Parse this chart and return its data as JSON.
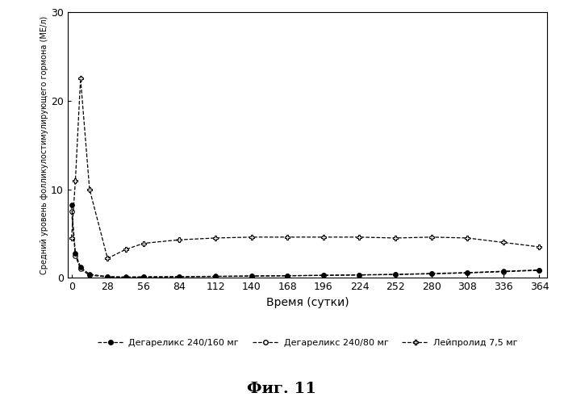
{
  "title": "Фиг. 11",
  "ylabel": "Средний уровень фолликулостимулирующего гормона (МЕ/л)",
  "xlabel": "Время (сутки)",
  "ylim": [
    0,
    30
  ],
  "xlim": [
    -3,
    370
  ],
  "xticks": [
    0,
    28,
    56,
    84,
    112,
    140,
    168,
    196,
    224,
    252,
    280,
    308,
    336,
    364
  ],
  "yticks": [
    0,
    10,
    20,
    30
  ],
  "series1_label": "Дегареликс 240/160 мг",
  "series2_label": "Дегареликс 240/80 мг",
  "series3_label": "Лейпролид 7,5 мг",
  "series1_x": [
    0,
    3,
    7,
    14,
    28,
    42,
    56,
    84,
    112,
    140,
    168,
    196,
    224,
    252,
    280,
    308,
    336,
    364
  ],
  "series1_y": [
    8.2,
    2.8,
    1.2,
    0.4,
    0.15,
    0.1,
    0.12,
    0.15,
    0.18,
    0.22,
    0.25,
    0.3,
    0.35,
    0.4,
    0.5,
    0.6,
    0.75,
    0.9
  ],
  "series2_x": [
    0,
    3,
    7,
    14,
    28,
    42,
    56,
    84,
    112,
    140,
    168,
    196,
    224,
    252,
    280,
    308,
    336,
    364
  ],
  "series2_y": [
    7.5,
    2.5,
    1.0,
    0.3,
    0.12,
    0.08,
    0.1,
    0.13,
    0.16,
    0.2,
    0.23,
    0.28,
    0.32,
    0.38,
    0.46,
    0.56,
    0.7,
    0.85
  ],
  "series3_x": [
    0,
    3,
    7,
    14,
    28,
    42,
    56,
    84,
    112,
    140,
    168,
    196,
    224,
    252,
    280,
    308,
    336,
    364
  ],
  "series3_y": [
    4.5,
    11.0,
    22.5,
    10.0,
    2.2,
    3.2,
    3.9,
    4.3,
    4.5,
    4.6,
    4.6,
    4.6,
    4.6,
    4.5,
    4.6,
    4.5,
    4.0,
    3.5
  ],
  "color1": "#000000",
  "color2": "#000000",
  "color3": "#000000",
  "bg_color": "#ffffff",
  "fontsize_title": 14,
  "fontsize_labels": 9,
  "fontsize_legend": 8,
  "fontsize_ylabel": 7
}
